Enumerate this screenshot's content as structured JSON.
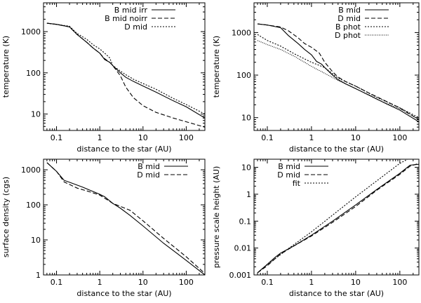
{
  "chart_data": [
    {
      "id": "tl",
      "type": "line",
      "xscale": "log",
      "yscale": "log",
      "xlim": [
        0.05,
        270
      ],
      "ylim": [
        4,
        5000
      ],
      "xticks": [
        0.1,
        1,
        10,
        100
      ],
      "xticklabels": [
        "0.1",
        "1",
        "10",
        "100"
      ],
      "yticks": [
        10,
        100,
        1000
      ],
      "yticklabels": [
        "10",
        "100",
        "1000"
      ],
      "xlabel": "distance to the star (AU)",
      "ylabel": "temperature (K)",
      "legend": "top-right",
      "series": [
        {
          "name": "B mid irr",
          "dash": "solid",
          "points": [
            [
              0.06,
              1600
            ],
            [
              0.1,
              1500
            ],
            [
              0.2,
              1300
            ],
            [
              0.3,
              850
            ],
            [
              0.5,
              550
            ],
            [
              0.7,
              400
            ],
            [
              1,
              300
            ],
            [
              1.3,
              210
            ],
            [
              1.7,
              180
            ],
            [
              2,
              150
            ],
            [
              3,
              100
            ],
            [
              4,
              78
            ],
            [
              6,
              62
            ],
            [
              10,
              48
            ],
            [
              20,
              34
            ],
            [
              50,
              21
            ],
            [
              100,
              15
            ],
            [
              270,
              8
            ]
          ]
        },
        {
          "name": "B mid noirr",
          "dash": "dashed",
          "points": [
            [
              0.06,
              1600
            ],
            [
              0.1,
              1500
            ],
            [
              0.2,
              1300
            ],
            [
              0.3,
              850
            ],
            [
              0.5,
              550
            ],
            [
              0.7,
              400
            ],
            [
              1,
              300
            ],
            [
              1.3,
              220
            ],
            [
              1.7,
              180
            ],
            [
              2,
              150
            ],
            [
              3,
              85
            ],
            [
              4,
              45
            ],
            [
              6,
              25
            ],
            [
              10,
              16
            ],
            [
              20,
              11
            ],
            [
              50,
              8
            ],
            [
              100,
              6.5
            ],
            [
              270,
              4.8
            ]
          ]
        },
        {
          "name": "D mid",
          "dash": "dotted",
          "points": [
            [
              0.06,
              1600
            ],
            [
              0.1,
              1500
            ],
            [
              0.2,
              1350
            ],
            [
              0.3,
              900
            ],
            [
              0.5,
              650
            ],
            [
              0.7,
              480
            ],
            [
              1,
              380
            ],
            [
              1.3,
              300
            ],
            [
              1.7,
              230
            ],
            [
              2,
              150
            ],
            [
              3,
              110
            ],
            [
              4,
              90
            ],
            [
              6,
              70
            ],
            [
              10,
              55
            ],
            [
              20,
              40
            ],
            [
              50,
              24
            ],
            [
              100,
              17
            ],
            [
              270,
              10
            ]
          ]
        }
      ]
    },
    {
      "id": "tr",
      "type": "line",
      "xscale": "log",
      "yscale": "log",
      "xlim": [
        0.05,
        270
      ],
      "ylim": [
        5,
        5000
      ],
      "xticks": [
        0.1,
        1,
        10,
        100
      ],
      "xticklabels": [
        "0.1",
        "1",
        "10",
        "100"
      ],
      "yticks": [
        10,
        100,
        1000
      ],
      "yticklabels": [
        "10",
        "100",
        "1000"
      ],
      "xlabel": "distance to the star (AU)",
      "ylabel": "temperature (K)",
      "legend": "top-right",
      "series": [
        {
          "name": "B mid",
          "dash": "solid",
          "points": [
            [
              0.06,
              1600
            ],
            [
              0.1,
              1500
            ],
            [
              0.2,
              1300
            ],
            [
              0.3,
              850
            ],
            [
              0.5,
              550
            ],
            [
              0.7,
              400
            ],
            [
              1,
              300
            ],
            [
              1.3,
              210
            ],
            [
              1.7,
              180
            ],
            [
              2,
              150
            ],
            [
              3,
              100
            ],
            [
              4,
              78
            ],
            [
              6,
              62
            ],
            [
              10,
              48
            ],
            [
              20,
              34
            ],
            [
              50,
              21
            ],
            [
              100,
              15
            ],
            [
              270,
              8
            ]
          ]
        },
        {
          "name": "D mid",
          "dash": "dashed",
          "points": [
            [
              0.06,
              1600
            ],
            [
              0.1,
              1500
            ],
            [
              0.2,
              1350
            ],
            [
              0.3,
              1100
            ],
            [
              0.5,
              750
            ],
            [
              0.7,
              550
            ],
            [
              1,
              450
            ],
            [
              1.5,
              330
            ],
            [
              2,
              200
            ],
            [
              3,
              120
            ],
            [
              4,
              90
            ],
            [
              6,
              70
            ],
            [
              10,
              55
            ],
            [
              20,
              38
            ],
            [
              50,
              24
            ],
            [
              100,
              17
            ],
            [
              270,
              9
            ]
          ]
        },
        {
          "name": "B phot",
          "dash": "dotted",
          "points": [
            [
              0.06,
              900
            ],
            [
              0.1,
              650
            ],
            [
              0.2,
              480
            ],
            [
              0.4,
              320
            ],
            [
              0.7,
              240
            ],
            [
              1,
              200
            ],
            [
              2,
              150
            ],
            [
              4,
              85
            ],
            [
              10,
              55
            ],
            [
              30,
              30
            ],
            [
              100,
              17
            ],
            [
              270,
              10
            ]
          ]
        },
        {
          "name": "D phot",
          "dash": "densedot",
          "points": [
            [
              0.06,
              650
            ],
            [
              0.1,
              520
            ],
            [
              0.2,
              400
            ],
            [
              0.4,
              280
            ],
            [
              0.7,
              200
            ],
            [
              1,
              160
            ],
            [
              2,
              110
            ],
            [
              4,
              75
            ],
            [
              10,
              48
            ],
            [
              30,
              27
            ],
            [
              100,
              16
            ],
            [
              270,
              9
            ]
          ]
        }
      ]
    },
    {
      "id": "bl",
      "type": "line",
      "xscale": "log",
      "yscale": "log",
      "xlim": [
        0.05,
        270
      ],
      "ylim": [
        1,
        2000
      ],
      "xticks": [
        0.1,
        1,
        10,
        100
      ],
      "xticklabels": [
        "0.1",
        "1",
        "10",
        "100"
      ],
      "yticks": [
        1,
        10,
        100,
        1000
      ],
      "yticklabels": [
        "1",
        "10",
        "100",
        "1000"
      ],
      "xlabel": "distance to the star (AU)",
      "ylabel": "surface density (cgs)",
      "legend": "top-right",
      "series": [
        {
          "name": "B mid",
          "dash": "solid",
          "points": [
            [
              0.06,
              1600
            ],
            [
              0.1,
              900
            ],
            [
              0.15,
              500
            ],
            [
              0.2,
              440
            ],
            [
              0.4,
              320
            ],
            [
              0.7,
              240
            ],
            [
              1,
              200
            ],
            [
              1.3,
              170
            ],
            [
              2,
              110
            ],
            [
              3,
              80
            ],
            [
              5,
              50
            ],
            [
              10,
              25
            ],
            [
              30,
              8
            ],
            [
              100,
              2.6
            ],
            [
              270,
              1
            ]
          ]
        },
        {
          "name": "D mid",
          "dash": "dashed",
          "points": [
            [
              0.06,
              1600
            ],
            [
              0.1,
              900
            ],
            [
              0.15,
              450
            ],
            [
              0.2,
              380
            ],
            [
              0.3,
              300
            ],
            [
              0.5,
              250
            ],
            [
              1,
              190
            ],
            [
              2,
              110
            ],
            [
              5,
              70
            ],
            [
              10,
              35
            ],
            [
              30,
              11
            ],
            [
              100,
              3.3
            ],
            [
              270,
              1.1
            ]
          ]
        }
      ]
    },
    {
      "id": "br",
      "type": "line",
      "xscale": "log",
      "yscale": "log",
      "xlim": [
        0.05,
        270
      ],
      "ylim": [
        0.001,
        20
      ],
      "xticks": [
        0.1,
        1,
        10,
        100
      ],
      "xticklabels": [
        "0.1",
        "1",
        "10",
        "100"
      ],
      "yticks": [
        0.001,
        0.01,
        0.1,
        1,
        10
      ],
      "yticklabels": [
        "0.001",
        "0.01",
        "0.1",
        "1",
        "10"
      ],
      "xlabel": "distance to the star (AU)",
      "ylabel": "pressure scale height (AU)",
      "legend": "top-left",
      "series": [
        {
          "name": "B mid",
          "dash": "solid",
          "points": [
            [
              0.06,
              0.0012
            ],
            [
              0.1,
              0.0025
            ],
            [
              0.15,
              0.0045
            ],
            [
              0.2,
              0.0065
            ],
            [
              0.4,
              0.012
            ],
            [
              1,
              0.03
            ],
            [
              3,
              0.1
            ],
            [
              10,
              0.4
            ],
            [
              30,
              1.5
            ],
            [
              100,
              6
            ],
            [
              170,
              12
            ],
            [
              270,
              13
            ]
          ]
        },
        {
          "name": "D mid",
          "dash": "dashed",
          "points": [
            [
              0.06,
              0.0012
            ],
            [
              0.1,
              0.0022
            ],
            [
              0.15,
              0.004
            ],
            [
              0.2,
              0.006
            ],
            [
              0.4,
              0.012
            ],
            [
              1,
              0.028
            ],
            [
              3,
              0.09
            ],
            [
              10,
              0.35
            ],
            [
              30,
              1.4
            ],
            [
              100,
              5.5
            ],
            [
              170,
              11
            ],
            [
              270,
              14
            ]
          ]
        },
        {
          "name": "fit",
          "dash": "dotted",
          "points": [
            [
              0.06,
              0.0012
            ],
            [
              0.1,
              0.0024
            ],
            [
              0.3,
              0.0095
            ],
            [
              1,
              0.04
            ],
            [
              10,
              0.8
            ],
            [
              100,
              14
            ],
            [
              150,
              20
            ]
          ]
        }
      ]
    }
  ],
  "colors": {
    "axis": "#000000",
    "series": "#000000",
    "background": "#ffffff"
  }
}
